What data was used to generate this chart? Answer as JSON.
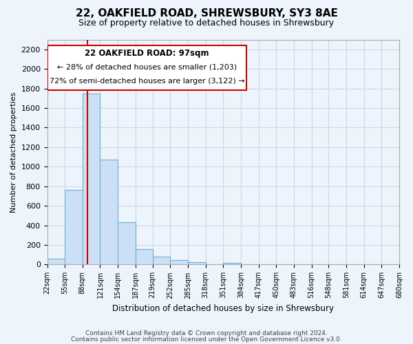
{
  "title": "22, OAKFIELD ROAD, SHREWSBURY, SY3 8AE",
  "subtitle": "Size of property relative to detached houses in Shrewsbury",
  "xlabel": "Distribution of detached houses by size in Shrewsbury",
  "ylabel": "Number of detached properties",
  "footer_line1": "Contains HM Land Registry data © Crown copyright and database right 2024.",
  "footer_line2": "Contains public sector information licensed under the Open Government Licence v3.0.",
  "bin_labels": [
    "22sqm",
    "55sqm",
    "88sqm",
    "121sqm",
    "154sqm",
    "187sqm",
    "219sqm",
    "252sqm",
    "285sqm",
    "318sqm",
    "351sqm",
    "384sqm",
    "417sqm",
    "450sqm",
    "483sqm",
    "516sqm",
    "548sqm",
    "581sqm",
    "614sqm",
    "647sqm",
    "680sqm"
  ],
  "bar_values": [
    60,
    760,
    1750,
    1075,
    430,
    155,
    80,
    45,
    25,
    0,
    20,
    0,
    0,
    0,
    0,
    0,
    0,
    0,
    0,
    0
  ],
  "bar_color": "#cce0f5",
  "bar_edge_color": "#6baed6",
  "grid_color": "#c8d8e8",
  "background_color": "#eef4fb",
  "annotation_box_color": "#ffffff",
  "annotation_border_color": "#cc0000",
  "red_line_x": 97,
  "red_line_color": "#cc0000",
  "annotation_title": "22 OAKFIELD ROAD: 97sqm",
  "annotation_line1": "← 28% of detached houses are smaller (1,203)",
  "annotation_line2": "72% of semi-detached houses are larger (3,122) →",
  "ylim": [
    0,
    2300
  ],
  "yticks": [
    0,
    200,
    400,
    600,
    800,
    1000,
    1200,
    1400,
    1600,
    1800,
    2000,
    2200
  ],
  "bin_edges": [
    22,
    55,
    88,
    121,
    154,
    187,
    219,
    252,
    285,
    318,
    351,
    384,
    417,
    450,
    483,
    516,
    548,
    581,
    614,
    647,
    680
  ]
}
